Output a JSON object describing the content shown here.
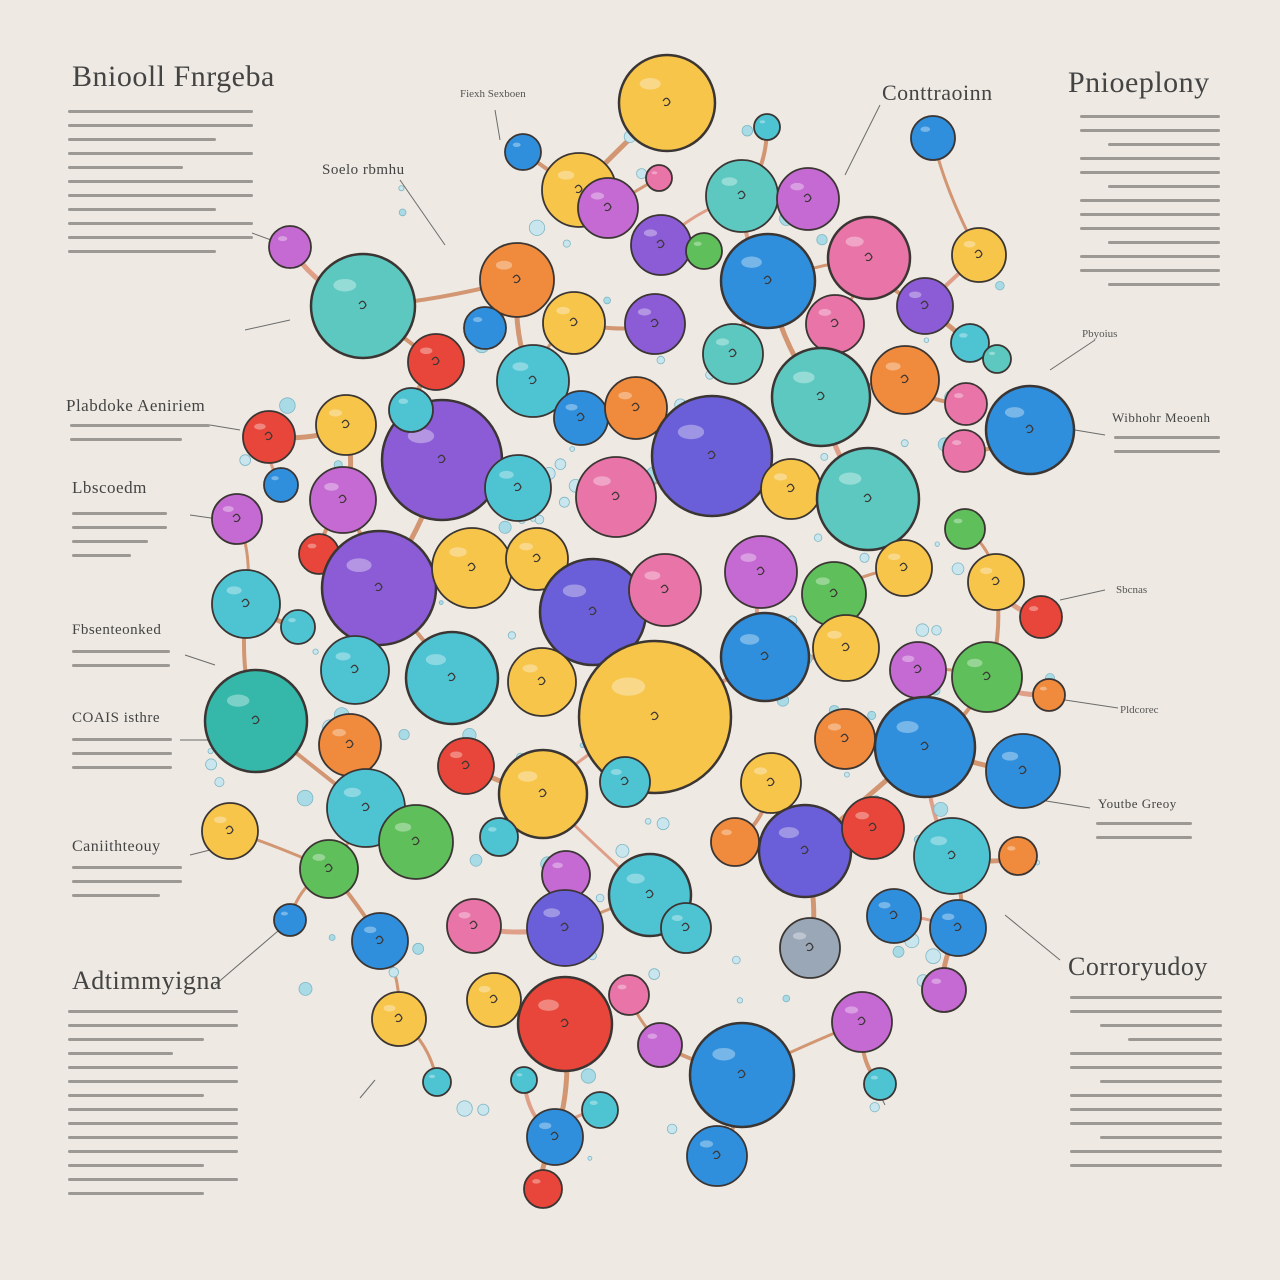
{
  "colors": {
    "background": "#eeeae3",
    "palette": [
      "#f6c54a",
      "#8b5cd6",
      "#6a5fd8",
      "#2f8fdc",
      "#4ec4d3",
      "#5cc8c0",
      "#f08a3c",
      "#e8463a",
      "#e874a8",
      "#c56ad3",
      "#5fbf5a",
      "#35b7a9",
      "#9aa7b7"
    ],
    "outline": "#3b3533",
    "branch": "#c9794e"
  },
  "headings": {
    "top_left": "Bniooll Fnrgeba",
    "top_center_small": "Fiexh Sexboen",
    "top_center_label": "Soelo rbmhu",
    "top_right_center": "Conttraoinn",
    "top_right": "Pnioeplony",
    "left_1": "Plabdoke Aeniriem",
    "left_2": "Lbscoedm",
    "left_3": "Fbsenteonked",
    "left_4": "COAIS isthre",
    "left_5": "Caniithteouy",
    "left_6": "Adtimmyigna",
    "right_1": "Pbyoius",
    "right_2": "Wibhohr Meoenh",
    "right_3": "Pldcorec",
    "right_4": "Youtbe Greoy",
    "right_5": "Corroryudoy",
    "center_label": "Sbcnas"
  },
  "icons": [
    "node-circle-icon"
  ]
}
